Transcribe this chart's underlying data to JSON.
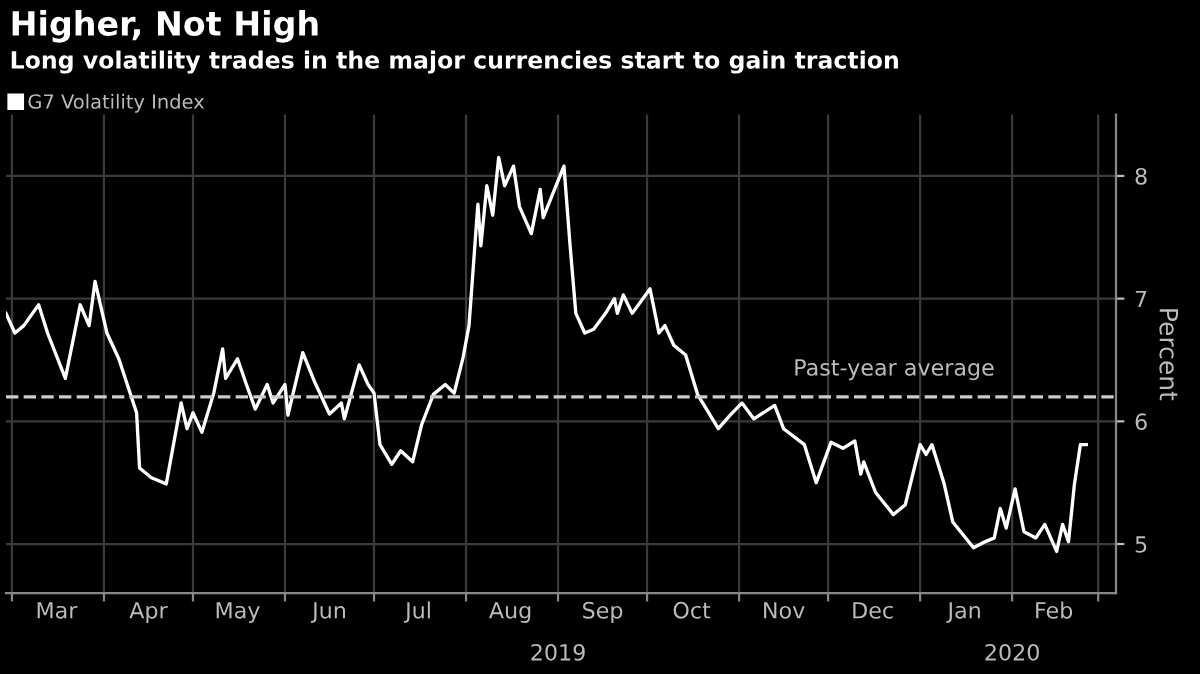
{
  "chart_data": {
    "type": "line",
    "title": "Higher, Not High",
    "subtitle": "Long volatility trades in the major currencies start to gain traction",
    "ylabel": "Percent",
    "x": [
      "2019-02-27",
      "2019-03-02",
      "2019-03-05",
      "2019-03-10",
      "2019-03-13",
      "2019-03-19",
      "2019-03-24",
      "2019-03-27",
      "2019-03-29",
      "2019-04-02",
      "2019-04-06",
      "2019-04-12",
      "2019-04-13",
      "2019-04-17",
      "2019-04-22",
      "2019-04-27",
      "2019-04-29",
      "2019-05-01",
      "2019-05-04",
      "2019-05-08",
      "2019-05-11",
      "2019-05-12",
      "2019-05-16",
      "2019-05-19",
      "2019-05-22",
      "2019-05-26",
      "2019-05-28",
      "2019-06-01",
      "2019-06-02",
      "2019-06-07",
      "2019-06-11",
      "2019-06-16",
      "2019-06-20",
      "2019-06-21",
      "2019-06-26",
      "2019-06-29",
      "2019-07-01",
      "2019-07-03",
      "2019-07-07",
      "2019-07-10",
      "2019-07-14",
      "2019-07-17",
      "2019-07-21",
      "2019-07-25",
      "2019-07-28",
      "2019-07-31",
      "2019-08-02",
      "2019-08-05",
      "2019-08-06",
      "2019-08-08",
      "2019-08-10",
      "2019-08-12",
      "2019-08-14",
      "2019-08-17",
      "2019-08-19",
      "2019-08-23",
      "2019-08-26",
      "2019-08-27",
      "2019-09-02",
      "2019-09-03",
      "2019-09-05",
      "2019-09-07",
      "2019-09-10",
      "2019-09-13",
      "2019-09-17",
      "2019-09-20",
      "2019-09-21",
      "2019-09-23",
      "2019-09-26",
      "2019-10-02",
      "2019-10-05",
      "2019-10-07",
      "2019-10-10",
      "2019-10-14",
      "2019-10-18",
      "2019-10-25",
      "2019-10-29",
      "2019-11-02",
      "2019-11-06",
      "2019-11-13",
      "2019-11-16",
      "2019-11-23",
      "2019-11-27",
      "2019-12-02",
      "2019-12-06",
      "2019-12-10",
      "2019-12-12",
      "2019-12-13",
      "2019-12-17",
      "2019-12-23",
      "2019-12-27",
      "2020-01-01",
      "2020-01-03",
      "2020-01-05",
      "2020-01-09",
      "2020-01-12",
      "2020-01-19",
      "2020-01-23",
      "2020-01-26",
      "2020-01-28",
      "2020-01-30",
      "2020-02-02",
      "2020-02-05",
      "2020-02-09",
      "2020-02-12",
      "2020-02-16",
      "2020-02-18",
      "2020-02-20",
      "2020-02-22",
      "2020-02-24",
      "2020-02-26"
    ],
    "series": [
      {
        "name": "G7 Volatility Index",
        "color": "#ffffff",
        "values": [
          6.88,
          6.72,
          6.78,
          6.95,
          6.72,
          6.35,
          6.95,
          6.78,
          7.14,
          6.72,
          6.51,
          6.07,
          5.62,
          5.54,
          5.49,
          6.15,
          5.94,
          6.07,
          5.91,
          6.23,
          6.59,
          6.35,
          6.51,
          6.3,
          6.1,
          6.3,
          6.15,
          6.3,
          6.05,
          6.56,
          6.32,
          6.06,
          6.15,
          6.02,
          6.46,
          6.3,
          6.23,
          5.81,
          5.65,
          5.76,
          5.67,
          5.97,
          6.22,
          6.3,
          6.23,
          6.52,
          6.78,
          7.77,
          7.43,
          7.92,
          7.68,
          8.15,
          7.92,
          8.08,
          7.75,
          7.53,
          7.89,
          7.66,
          8.02,
          8.08,
          7.45,
          6.88,
          6.72,
          6.75,
          6.88,
          7.0,
          6.88,
          7.03,
          6.88,
          7.08,
          6.72,
          6.78,
          6.62,
          6.54,
          6.22,
          5.94,
          6.05,
          6.15,
          6.02,
          6.13,
          5.94,
          5.81,
          5.5,
          5.83,
          5.78,
          5.84,
          5.57,
          5.67,
          5.42,
          5.24,
          5.32,
          5.81,
          5.73,
          5.81,
          5.5,
          5.18,
          4.97,
          5.02,
          5.05,
          5.29,
          5.13,
          5.45,
          5.1,
          5.05,
          5.16,
          4.94,
          5.16,
          5.02,
          5.49,
          5.81,
          5.81
        ]
      }
    ],
    "xlim": [
      "2019-02-27",
      "2020-03-07"
    ],
    "xticks": [
      {
        "value": "2019-03-01",
        "label": null
      },
      {
        "value": "2019-03-16",
        "label": "Mar"
      },
      {
        "value": "2019-04-01",
        "label": null
      },
      {
        "value": "2019-04-16",
        "label": "Apr"
      },
      {
        "value": "2019-05-01",
        "label": null
      },
      {
        "value": "2019-05-16",
        "label": "May"
      },
      {
        "value": "2019-06-01",
        "label": null
      },
      {
        "value": "2019-06-16",
        "label": "Jun"
      },
      {
        "value": "2019-07-01",
        "label": null
      },
      {
        "value": "2019-07-16",
        "label": "Jul"
      },
      {
        "value": "2019-08-01",
        "label": null
      },
      {
        "value": "2019-08-16",
        "label": "Aug"
      },
      {
        "value": "2019-09-01",
        "label": null
      },
      {
        "value": "2019-09-16",
        "label": "Sep"
      },
      {
        "value": "2019-10-01",
        "label": null
      },
      {
        "value": "2019-10-16",
        "label": "Oct"
      },
      {
        "value": "2019-11-01",
        "label": null
      },
      {
        "value": "2019-11-16",
        "label": "Nov"
      },
      {
        "value": "2019-12-01",
        "label": null
      },
      {
        "value": "2019-12-16",
        "label": "Dec"
      },
      {
        "value": "2020-01-01",
        "label": null
      },
      {
        "value": "2020-01-16",
        "label": "Jan"
      },
      {
        "value": "2020-02-01",
        "label": null
      },
      {
        "value": "2020-02-15",
        "label": "Feb"
      },
      {
        "value": "2020-03-01",
        "label": null
      }
    ],
    "x2lim": [
      "2019-02-27",
      "2020-03-07"
    ],
    "x2ticks": [
      {
        "value": "2019-09-01",
        "label": "2019"
      },
      {
        "value": "2020-02-01",
        "label": "2020"
      }
    ],
    "ylim": [
      4.6,
      8.5
    ],
    "yticks": [
      5,
      6,
      7,
      8
    ],
    "ref_lines": [
      {
        "axis": "y",
        "value": 6.2,
        "label": "Past-year average",
        "color": "#cccccc",
        "line_style": "dashed"
      }
    ],
    "grid": true,
    "legend": "top left",
    "line_style": "solid",
    "marker": "none"
  }
}
